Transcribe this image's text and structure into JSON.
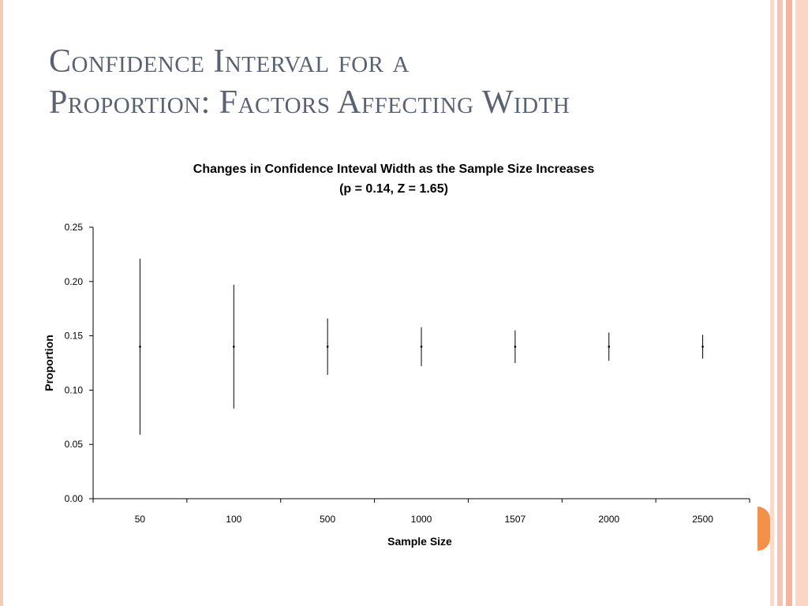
{
  "slide": {
    "title_line1": "Confidence Interval for a",
    "title_line2": "Proportion: Factors Affecting Width"
  },
  "colors": {
    "title": "#5a6172",
    "accent": "#f39149",
    "stripe_light": "#fbd9cc",
    "stripe_mid": "#f4b49e",
    "ink": "#000000"
  },
  "chart_data": {
    "type": "errorbar",
    "title": "Changes in Confidence Inteval Width as the Sample Size Increases",
    "subtitle": "(p = 0.14, Z = 1.65)",
    "xlabel": "Sample Size",
    "ylabel": "Proportion",
    "categories": [
      "50",
      "100",
      "500",
      "1000",
      "1507",
      "2000",
      "2500"
    ],
    "center": [
      0.14,
      0.14,
      0.14,
      0.14,
      0.14,
      0.14,
      0.14
    ],
    "lower": [
      0.059,
      0.083,
      0.114,
      0.122,
      0.125,
      0.127,
      0.129
    ],
    "upper": [
      0.221,
      0.197,
      0.166,
      0.158,
      0.155,
      0.153,
      0.151
    ],
    "ylim": [
      0,
      0.25
    ],
    "yticks": [
      "0.00",
      "0.05",
      "0.10",
      "0.15",
      "0.20",
      "0.25"
    ],
    "grid": false,
    "legend": "none"
  }
}
